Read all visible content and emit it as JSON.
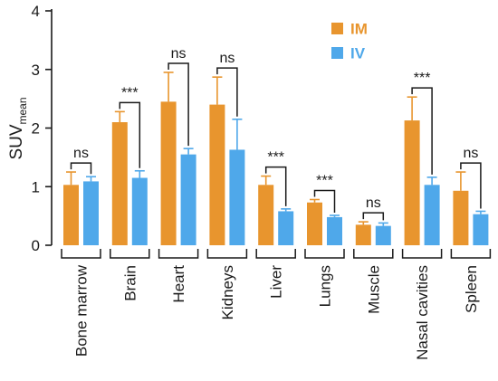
{
  "chart_data": {
    "type": "bar",
    "title": "",
    "xlabel": "",
    "ylabel": "SUV",
    "ylabel_subscript": "mean",
    "ylim": [
      0,
      4
    ],
    "yticks": [
      "0",
      "1",
      "2",
      "3",
      "4"
    ],
    "grid": false,
    "legend_position": "top-right",
    "categories": [
      "Bone marrow",
      "Brain",
      "Heart",
      "Kidneys",
      "Liver",
      "Lungs",
      "Muscle",
      "Nasal cavities",
      "Spleen"
    ],
    "series": [
      {
        "name": "IM",
        "color": "#E8952E",
        "values": [
          1.03,
          2.1,
          2.45,
          2.4,
          1.03,
          0.73,
          0.35,
          2.13,
          0.93
        ],
        "errors": [
          0.22,
          0.18,
          0.5,
          0.47,
          0.15,
          0.05,
          0.05,
          0.4,
          0.32
        ]
      },
      {
        "name": "IV",
        "color": "#4FA8EA",
        "values": [
          1.09,
          1.15,
          1.55,
          1.63,
          0.58,
          0.48,
          0.33,
          1.03,
          0.53
        ],
        "errors": [
          0.08,
          0.12,
          0.1,
          0.52,
          0.04,
          0.03,
          0.05,
          0.13,
          0.05
        ]
      }
    ],
    "significance": [
      "ns",
      "***",
      "ns",
      "ns",
      "***",
      "***",
      "ns",
      "***",
      "ns"
    ]
  }
}
